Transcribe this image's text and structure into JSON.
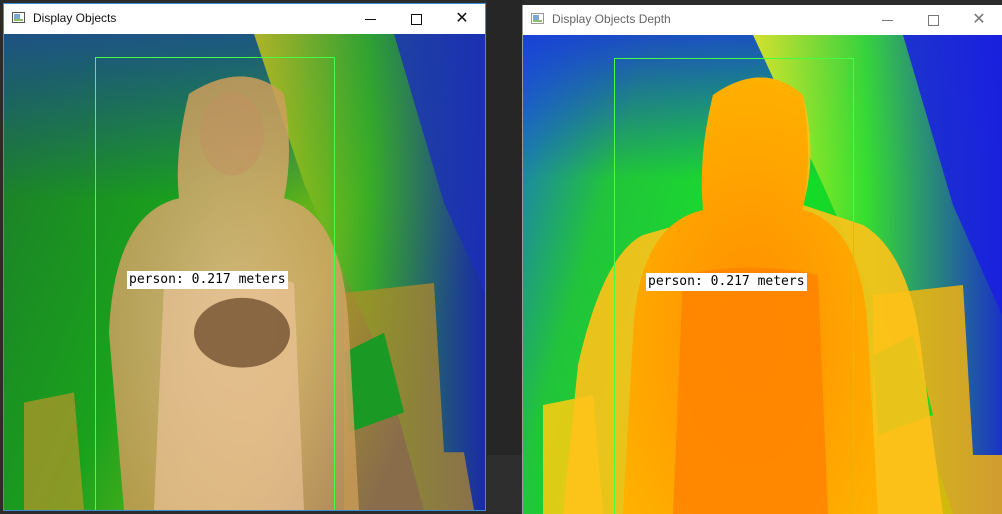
{
  "colors": {
    "bbox": "#44ff44",
    "window_border_active": "#3c8ed6",
    "label_bg": "#ffffff"
  },
  "windows": [
    {
      "title": "Display Objects",
      "detection": {
        "label": "person: 0.217 meters"
      },
      "controls": {
        "minimize": "minimize-icon",
        "maximize": "maximize-icon",
        "close": "close-icon"
      }
    },
    {
      "title": "Display Objects Depth",
      "detection": {
        "label": "person: 0.217 meters"
      },
      "controls": {
        "minimize": "minimize-icon",
        "maximize": "maximize-icon",
        "close": "close-icon"
      }
    }
  ]
}
